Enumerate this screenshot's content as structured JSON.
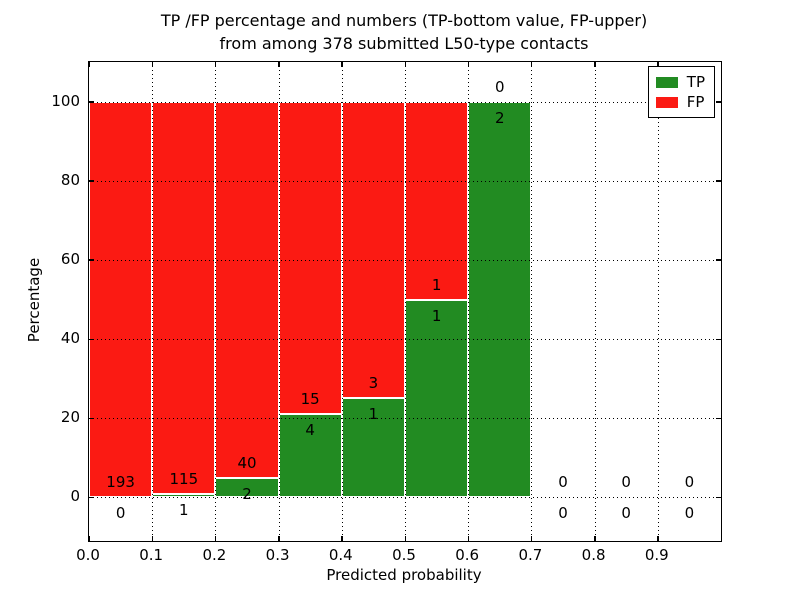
{
  "header": {
    "title_line1": "TP /FP percentage and numbers (TP-bottom value, FP-upper)",
    "title_line2": "from among 378 submitted L50-type contacts"
  },
  "chart_data": {
    "type": "bar",
    "stacked": true,
    "title": "TP /FP percentage and numbers (TP-bottom value, FP-upper)\nfrom among 378 submitted L50-type contacts",
    "xlabel": "Predicted probability",
    "ylabel": "Percentage",
    "total_contacts": 378,
    "xlim": [
      0.0,
      1.0
    ],
    "ylim": [
      -11,
      110
    ],
    "grid": true,
    "colors": {
      "tp": "#228b22",
      "fp": "#fb1a13",
      "grid": "#000000",
      "background": "#ffffff"
    },
    "x_ticks": [
      {
        "value": 0.0,
        "label": "0.0"
      },
      {
        "value": 0.1,
        "label": "0.1"
      },
      {
        "value": 0.2,
        "label": "0.2"
      },
      {
        "value": 0.3,
        "label": "0.3"
      },
      {
        "value": 0.4,
        "label": "0.4"
      },
      {
        "value": 0.5,
        "label": "0.5"
      },
      {
        "value": 0.6,
        "label": "0.6"
      },
      {
        "value": 0.7,
        "label": "0.7"
      },
      {
        "value": 0.8,
        "label": "0.8"
      },
      {
        "value": 0.9,
        "label": "0.9"
      }
    ],
    "y_ticks": [
      {
        "value": 0,
        "label": "0"
      },
      {
        "value": 20,
        "label": "20"
      },
      {
        "value": 40,
        "label": "40"
      },
      {
        "value": 60,
        "label": "60"
      },
      {
        "value": 80,
        "label": "80"
      },
      {
        "value": 100,
        "label": "100"
      }
    ],
    "legend": {
      "position": "upper right",
      "entries": [
        {
          "label": "TP",
          "color": "#228b22"
        },
        {
          "label": "FP",
          "color": "#fb1a13"
        }
      ]
    },
    "bins": [
      {
        "x_range": [
          0.0,
          0.1
        ],
        "tp_count": 0,
        "fp_count": 193,
        "tp_pct": 0.0,
        "fp_pct": 100.0
      },
      {
        "x_range": [
          0.1,
          0.2
        ],
        "tp_count": 1,
        "fp_count": 115,
        "tp_pct": 0.9,
        "fp_pct": 99.1
      },
      {
        "x_range": [
          0.2,
          0.3
        ],
        "tp_count": 2,
        "fp_count": 40,
        "tp_pct": 4.8,
        "fp_pct": 95.2
      },
      {
        "x_range": [
          0.3,
          0.4
        ],
        "tp_count": 4,
        "fp_count": 15,
        "tp_pct": 21.1,
        "fp_pct": 78.9
      },
      {
        "x_range": [
          0.4,
          0.5
        ],
        "tp_count": 1,
        "fp_count": 3,
        "tp_pct": 25.0,
        "fp_pct": 75.0
      },
      {
        "x_range": [
          0.5,
          0.6
        ],
        "tp_count": 1,
        "fp_count": 1,
        "tp_pct": 50.0,
        "fp_pct": 50.0
      },
      {
        "x_range": [
          0.6,
          0.7
        ],
        "tp_count": 2,
        "fp_count": 0,
        "tp_pct": 100.0,
        "fp_pct": 0.0
      },
      {
        "x_range": [
          0.7,
          0.8
        ],
        "tp_count": 0,
        "fp_count": 0,
        "tp_pct": 0.0,
        "fp_pct": 0.0
      },
      {
        "x_range": [
          0.8,
          0.9
        ],
        "tp_count": 0,
        "fp_count": 0,
        "tp_pct": 0.0,
        "fp_pct": 0.0
      },
      {
        "x_range": [
          0.9,
          1.0
        ],
        "tp_count": 0,
        "fp_count": 0,
        "tp_pct": 0.0,
        "fp_pct": 0.0
      }
    ]
  }
}
